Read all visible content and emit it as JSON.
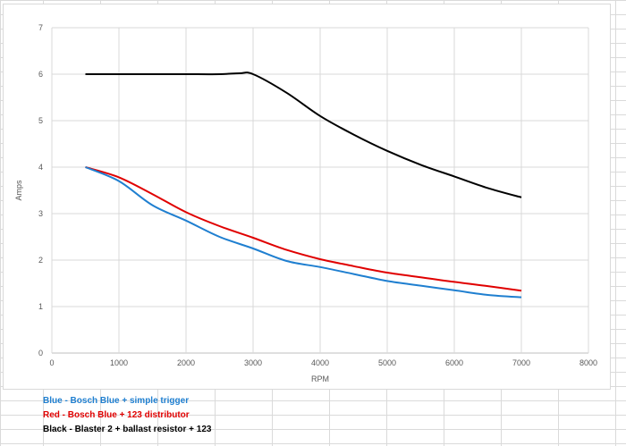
{
  "chart_data": {
    "type": "line",
    "xlabel": "RPM",
    "ylabel": "Amps",
    "xlim": [
      0,
      8000
    ],
    "ylim": [
      0,
      7
    ],
    "x_ticks": [
      "0",
      "1000",
      "2000",
      "3000",
      "4000",
      "5000",
      "6000",
      "7000",
      "8000"
    ],
    "y_ticks": [
      "0",
      "1",
      "2",
      "3",
      "4",
      "5",
      "6",
      "7"
    ],
    "grid": true,
    "series": [
      {
        "color": "#000000",
        "x": [
          500,
          1000,
          1500,
          2000,
          2500,
          2800,
          3000,
          3500,
          4000,
          4500,
          5000,
          5500,
          6000,
          6500,
          7000
        ],
        "y": [
          6.0,
          6.0,
          6.0,
          6.0,
          6.0,
          6.02,
          6.0,
          5.6,
          5.1,
          4.7,
          4.35,
          4.05,
          3.8,
          3.55,
          3.35
        ]
      },
      {
        "color": "#e00000",
        "x": [
          500,
          1000,
          1500,
          2000,
          2500,
          3000,
          3500,
          4000,
          4500,
          5000,
          5500,
          6000,
          6500,
          7000
        ],
        "y": [
          4.0,
          3.78,
          3.42,
          3.03,
          2.73,
          2.48,
          2.22,
          2.02,
          1.87,
          1.73,
          1.63,
          1.53,
          1.44,
          1.34
        ]
      },
      {
        "color": "#1f7fd0",
        "x": [
          500,
          1000,
          1500,
          2000,
          2500,
          3000,
          3500,
          4000,
          4500,
          5000,
          5500,
          6000,
          6500,
          7000
        ],
        "y": [
          4.0,
          3.7,
          3.18,
          2.85,
          2.5,
          2.25,
          1.98,
          1.85,
          1.7,
          1.55,
          1.45,
          1.35,
          1.25,
          1.2
        ]
      }
    ]
  },
  "legend_notes": [
    {
      "text": "Blue - Bosch Blue + simple trigger",
      "color": "#1f7fd0"
    },
    {
      "text": "Red - Bosch Blue + 123 distributor",
      "color": "#e00000"
    },
    {
      "text": "Black - Blaster 2 + ballast resistor + 123",
      "color": "#000000"
    }
  ]
}
